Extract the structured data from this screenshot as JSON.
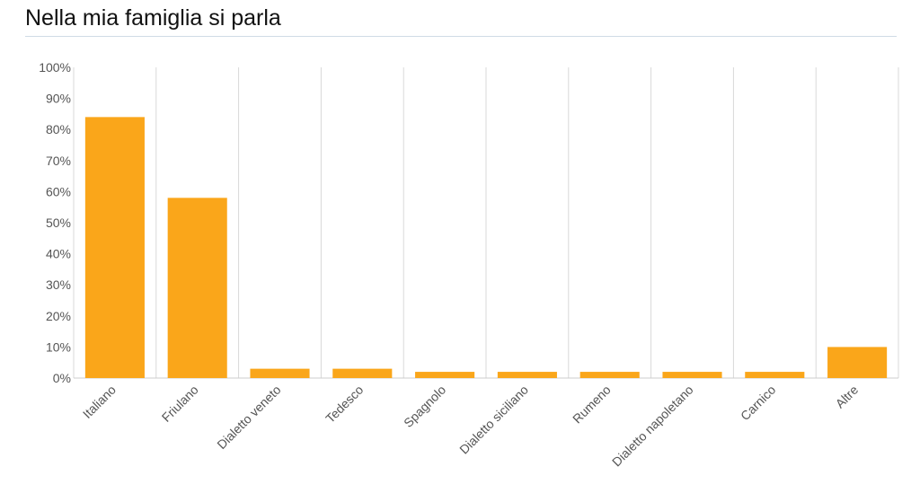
{
  "chart_data": {
    "type": "bar",
    "title": "Nella mia famiglia si parla",
    "categories": [
      "Italiano",
      "Friulano",
      "Dialetto veneto",
      "Tedesco",
      "Spagnolo",
      "Dialetto siciliano",
      "Rumeno",
      "Dialetto napoletano",
      "Carnico",
      "Altre"
    ],
    "values": [
      84,
      58,
      3,
      3,
      2,
      2,
      2,
      2,
      2,
      10
    ],
    "ylim": [
      0,
      100
    ],
    "yticks": [
      "0%",
      "10%",
      "20%",
      "30%",
      "40%",
      "50%",
      "60%",
      "70%",
      "80%",
      "90%",
      "100%"
    ],
    "xlabel": "",
    "ylabel": "",
    "grid": "vertical separators",
    "bar_color": "#faa61a"
  }
}
